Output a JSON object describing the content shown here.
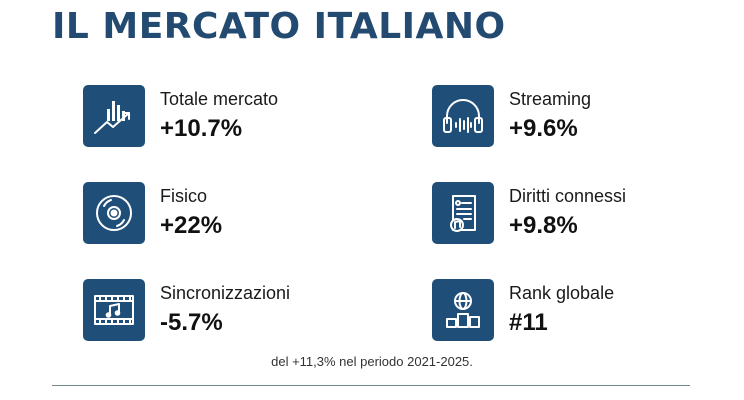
{
  "title": "IL MERCATO ITALIANO",
  "stats": [
    {
      "label": "Totale mercato",
      "value": "+10.7%",
      "icon": "growth-chart-icon"
    },
    {
      "label": "Streaming",
      "value": "+9.6%",
      "icon": "headphones-icon"
    },
    {
      "label": "Fisico",
      "value": "+22%",
      "icon": "cd-disc-icon"
    },
    {
      "label": "Diritti connessi",
      "value": "+9.8%",
      "icon": "document-music-icon"
    },
    {
      "label": "Sincronizzazioni",
      "value": "-5.7%",
      "icon": "film-music-icon"
    },
    {
      "label": "Rank globale",
      "value": "#11",
      "icon": "globe-podium-icon"
    }
  ],
  "footnote": "del +11,3% nel periodo 2021-2025.",
  "colors": {
    "primary": "#234a70",
    "icon_bg": "#1f4f78",
    "divider": "#6f8b8c"
  }
}
